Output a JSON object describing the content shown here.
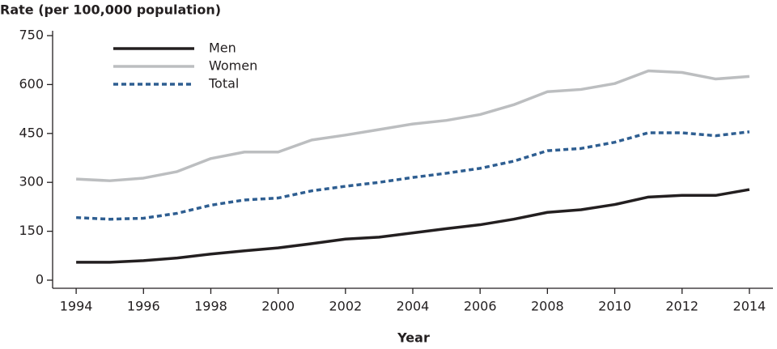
{
  "chart_data": {
    "type": "line",
    "y_label": "Rate (per 100,000 population)",
    "x_label": "Year",
    "x": [
      1994,
      1995,
      1996,
      1997,
      1998,
      1999,
      2000,
      2001,
      2002,
      2003,
      2004,
      2005,
      2006,
      2007,
      2008,
      2009,
      2010,
      2011,
      2012,
      2013,
      2014
    ],
    "series": [
      {
        "name": "Men",
        "color": "#231f20",
        "linestyle": "solid",
        "values": [
          55,
          55,
          60,
          68,
          80,
          90,
          99,
          112,
          126,
          132,
          145,
          158,
          170,
          187,
          208,
          216,
          232,
          255,
          260,
          260,
          278
        ]
      },
      {
        "name": "Women",
        "color": "#bcbec0",
        "linestyle": "solid",
        "values": [
          310,
          305,
          313,
          333,
          373,
          393,
          393,
          430,
          445,
          462,
          479,
          490,
          508,
          538,
          578,
          585,
          603,
          642,
          637,
          617,
          625
        ]
      },
      {
        "name": "Total",
        "color": "#2e5e91",
        "linestyle": "dashed",
        "values": [
          192,
          187,
          190,
          205,
          230,
          246,
          252,
          274,
          288,
          300,
          315,
          328,
          343,
          365,
          397,
          404,
          423,
          452,
          452,
          443,
          455
        ]
      }
    ],
    "xlim": [
      1993.3,
      2014.7
    ],
    "xticks": [
      1994,
      1996,
      1998,
      2000,
      2002,
      2004,
      2006,
      2008,
      2010,
      2012,
      2014
    ],
    "ylim": [
      0,
      750
    ],
    "yticks": [
      0,
      150,
      300,
      450,
      600,
      750
    ],
    "legend": "top-left",
    "grid": false
  }
}
